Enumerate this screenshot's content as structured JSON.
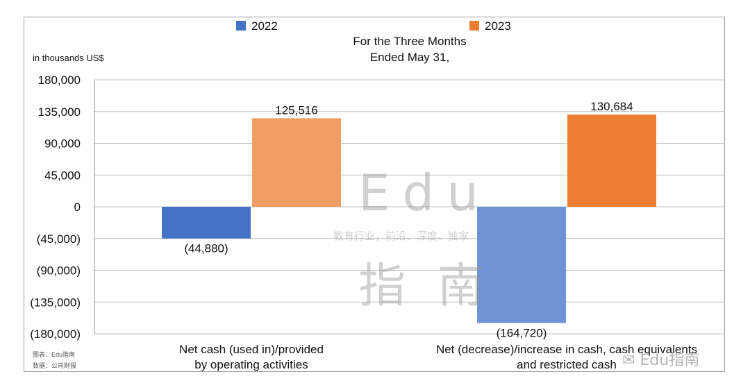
{
  "chart_data": {
    "type": "bar",
    "title": "For the Three Months\nEnded May 31,",
    "ylabel": "in thousands US$",
    "ylim": [
      -180000,
      180000
    ],
    "yticks": [
      180000,
      135000,
      90000,
      45000,
      0,
      -45000,
      -90000,
      -135000,
      -180000
    ],
    "ytick_labels": [
      "180,000",
      "135,000",
      "90,000",
      "45,000",
      "0",
      "(45,000)",
      "(90,000)",
      "(135,000)",
      "(180,000)"
    ],
    "grid": true,
    "legend_placement": "top",
    "categories": [
      "Net cash (used in)/provided\nby operating activities",
      "Net (decrease)/increase in cash, cash equivalents\nand restricted cash"
    ],
    "series": [
      {
        "name": "2022",
        "values": [
          -44880,
          -164720
        ],
        "labels": [
          "(44,880)",
          "(164,720)"
        ],
        "colors": [
          "#4472c4",
          "#6f93d4"
        ]
      },
      {
        "name": "2023",
        "values": [
          125516,
          130684
        ],
        "labels": [
          "125,516",
          "130,684"
        ],
        "colors": [
          "#f19d63",
          "#ed7d31"
        ]
      }
    ]
  },
  "title_lines": [
    "For the Three Months",
    "Ended May 31,"
  ],
  "category_lines": [
    [
      "Net cash (used in)/provided",
      "by operating activities"
    ],
    [
      "Net (decrease)/increase in cash, cash equivalents",
      "and restricted cash"
    ]
  ],
  "unit_label": "in thousands US$",
  "credits": {
    "chart_source": "图表：Edu指南",
    "data_source": "数据：公司财报"
  },
  "watermark": {
    "brand": "Edu",
    "tagline": "教育行业，前沿、深度、独家",
    "cn_name": "指 南",
    "social_text": "Edu指南"
  },
  "colors": {
    "series_2022": "#4472c4",
    "series_2022_light": "#6f93d4",
    "series_2023": "#ed7d31",
    "series_2023_light": "#f19d63",
    "grid": "#bfbfbf"
  }
}
